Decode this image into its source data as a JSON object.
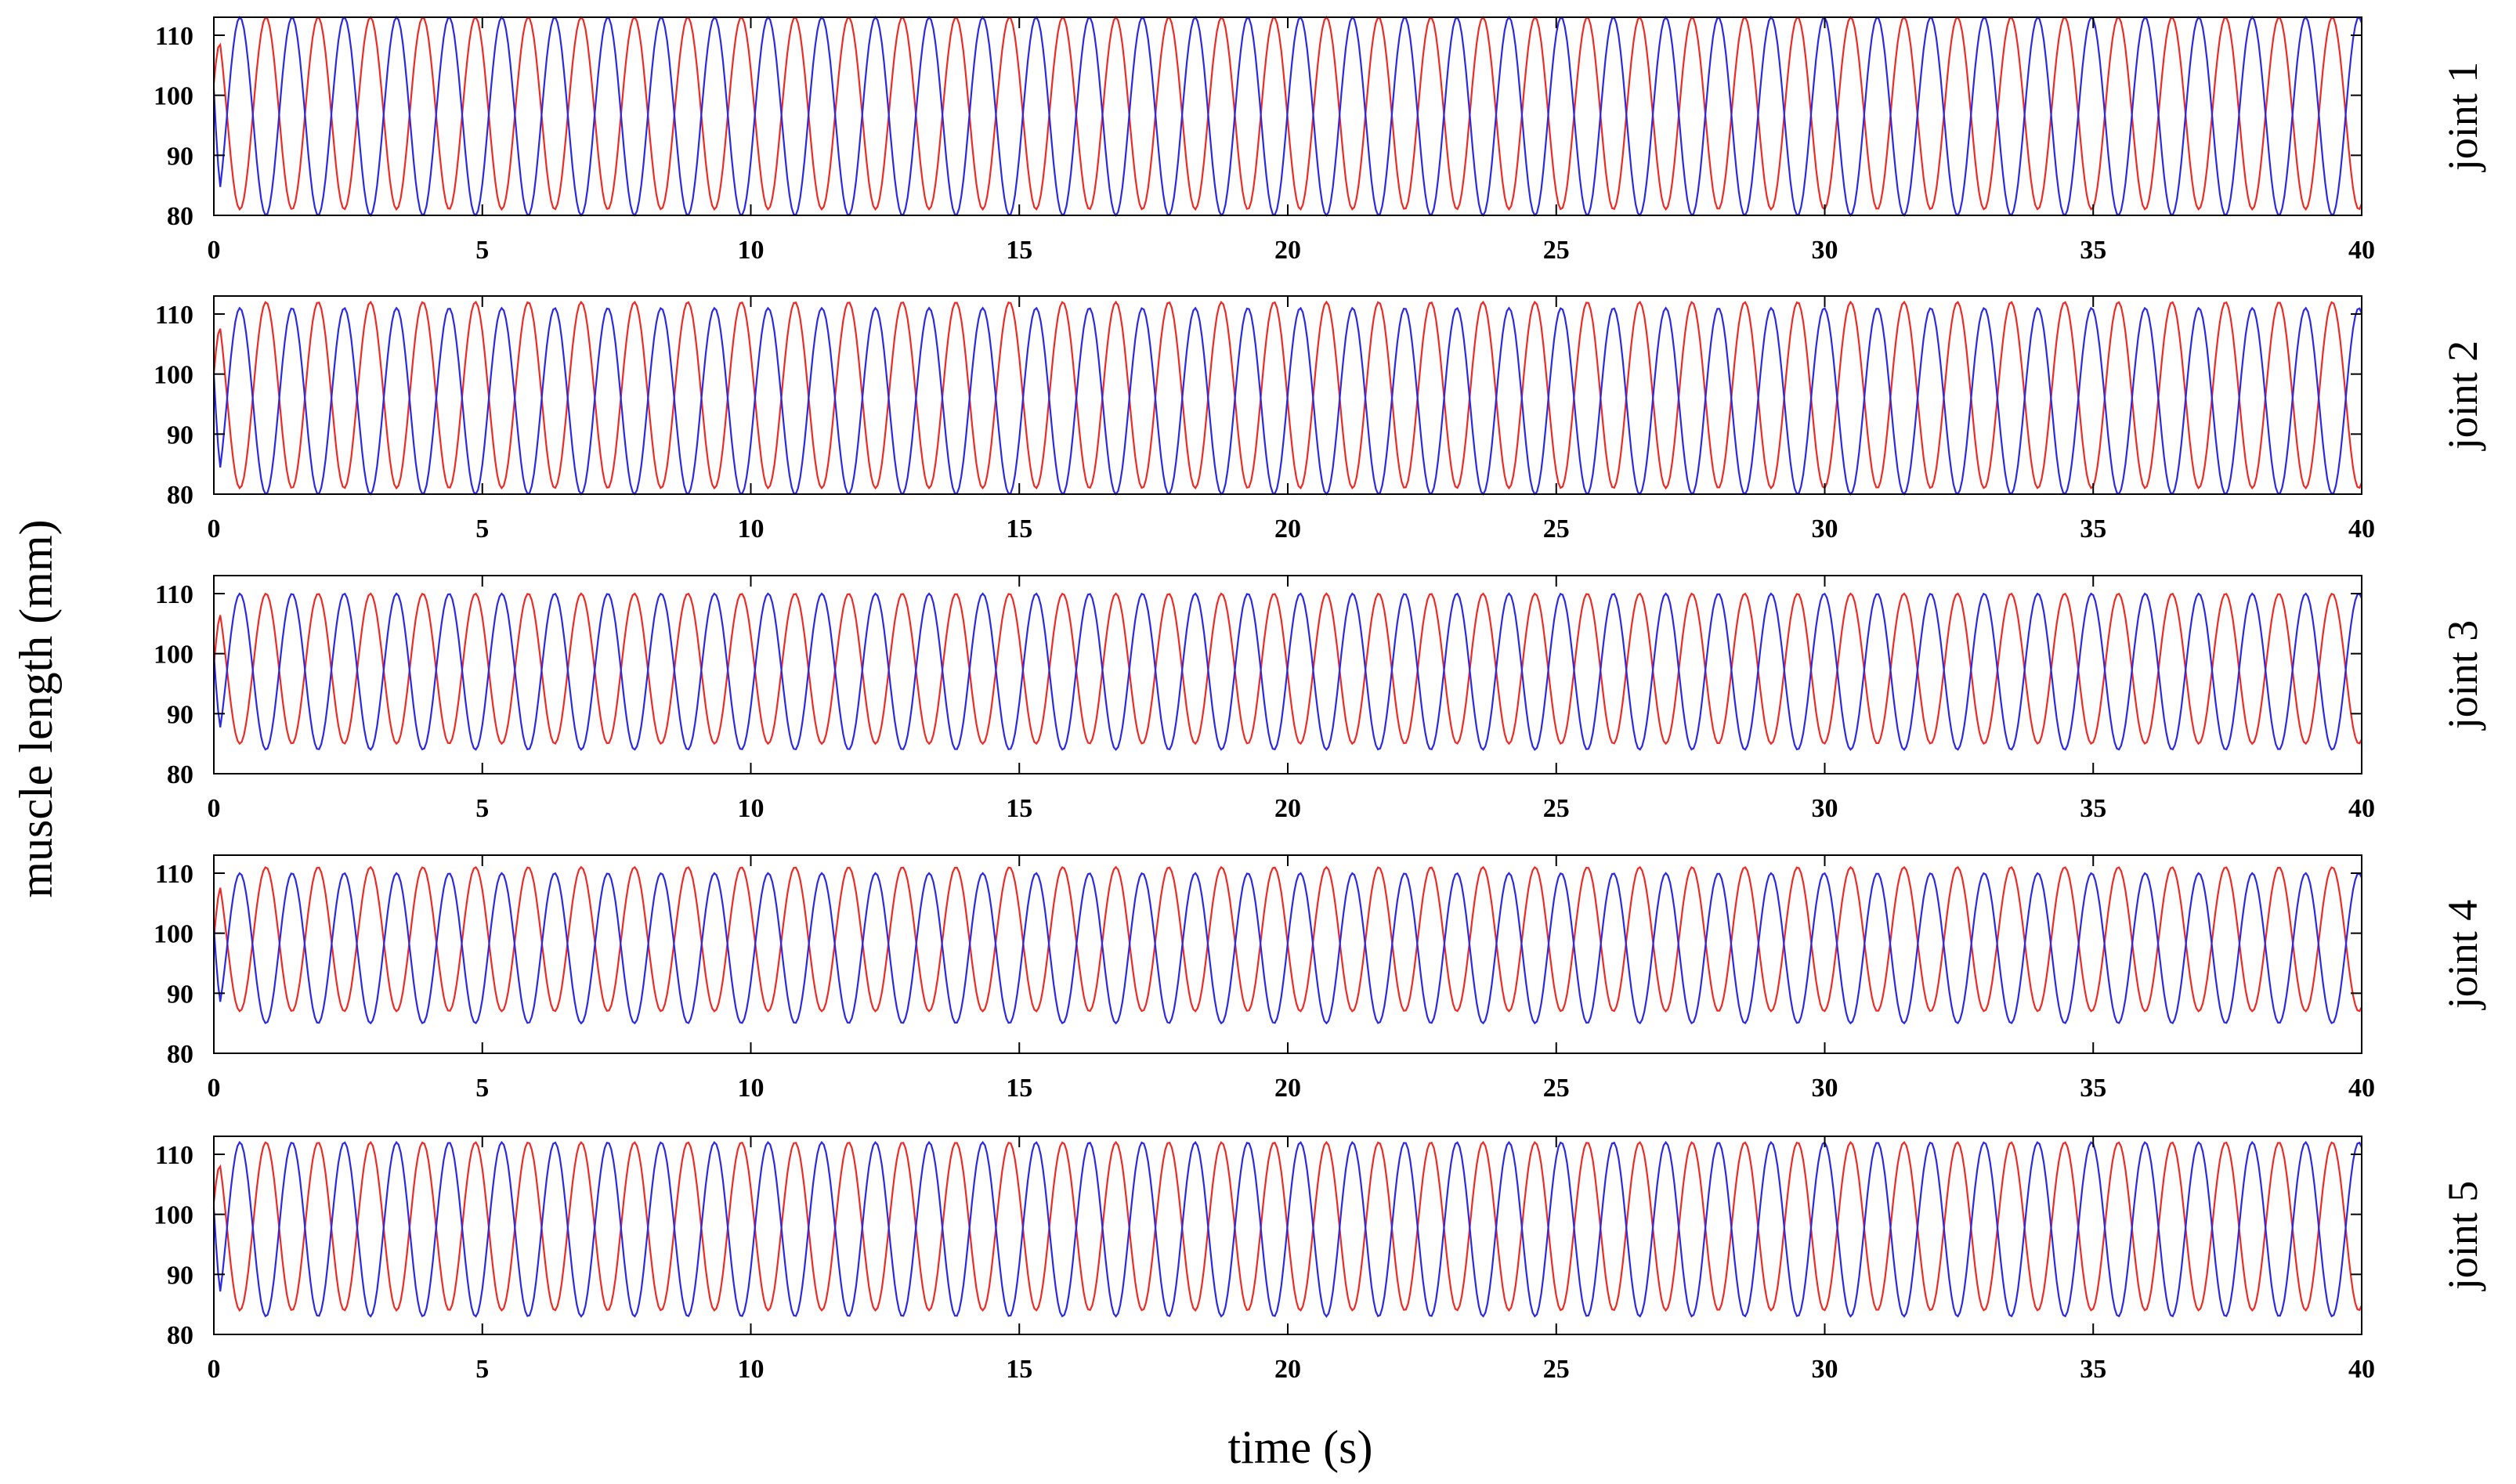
{
  "chart_data": {
    "type": "line",
    "xlabel": "time (s)",
    "ylabel": "muscle length (mm)",
    "xlim": [
      0,
      40
    ],
    "ylim": [
      80,
      113
    ],
    "x_ticks": [
      0,
      5,
      10,
      15,
      20,
      25,
      30,
      35,
      40
    ],
    "y_ticks": [
      80,
      90,
      100,
      110
    ],
    "grid": false,
    "series_colors": [
      "#ee2a24",
      "#2a2ae6"
    ],
    "panels": [
      {
        "title": "joint 1",
        "period": 0.985,
        "red": {
          "start": 102,
          "min": 81,
          "max": 113
        },
        "blue": {
          "start": 101,
          "min": 80,
          "max": 113
        }
      },
      {
        "title": "joint 2",
        "period": 0.985,
        "red": {
          "start": 100,
          "min": 81,
          "max": 112
        },
        "blue": {
          "start": 100,
          "min": 80,
          "max": 111
        }
      },
      {
        "title": "joint 3",
        "period": 0.985,
        "red": {
          "start": 98,
          "min": 85,
          "max": 110
        },
        "blue": {
          "start": 100,
          "min": 84,
          "max": 110
        }
      },
      {
        "title": "joint 4",
        "period": 0.985,
        "red": {
          "start": 99,
          "min": 87,
          "max": 111
        },
        "blue": {
          "start": 101,
          "min": 85,
          "max": 110
        }
      },
      {
        "title": "joint 5",
        "period": 0.985,
        "red": {
          "start": 102,
          "min": 84,
          "max": 112
        },
        "blue": {
          "start": 101,
          "min": 83,
          "max": 112
        }
      }
    ]
  }
}
